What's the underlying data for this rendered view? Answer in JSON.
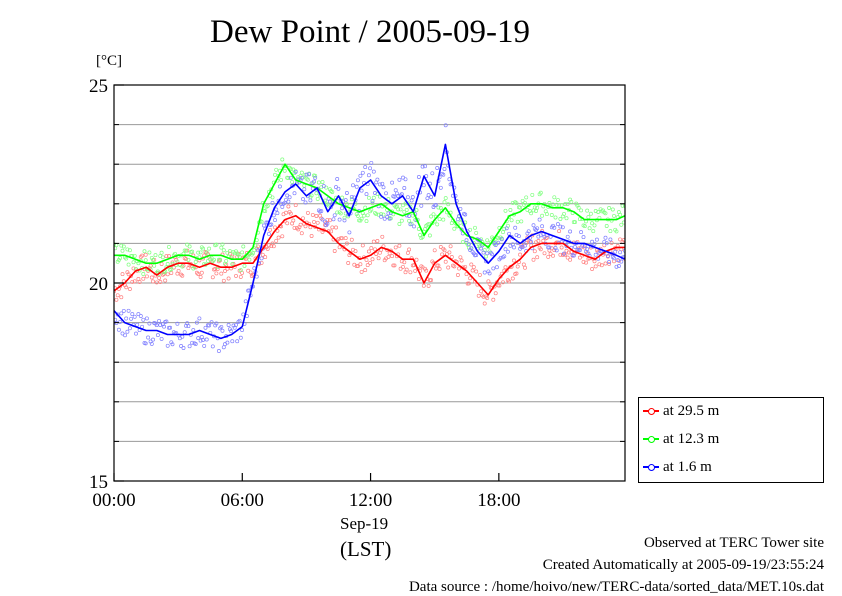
{
  "chart_data": {
    "type": "line",
    "title": "Dew Point / 2005-09-19",
    "ylabel": "[°C]",
    "xlabel": "Sep-19",
    "xlabel_sub": "(LST)",
    "x_unit": "hours",
    "xlim": [
      0,
      23.9
    ],
    "ylim": [
      15,
      25
    ],
    "yticks": [
      15,
      20,
      25
    ],
    "y_gridlines": [
      15,
      16,
      17,
      18,
      19,
      20,
      21,
      22,
      23,
      24,
      25
    ],
    "xticks": [
      {
        "value": 0,
        "label": "00:00"
      },
      {
        "value": 6,
        "label": "06:00"
      },
      {
        "value": 12,
        "label": "12:00"
      },
      {
        "value": 18,
        "label": "18:00"
      }
    ],
    "grid": true,
    "legend_position": "bottom-right-outside",
    "series": [
      {
        "name": "at 29.5 m",
        "color": "#ff0000",
        "x": [
          0,
          0.5,
          1,
          1.5,
          2,
          2.5,
          3,
          3.5,
          4,
          4.5,
          5,
          5.5,
          6,
          6.5,
          7,
          7.5,
          8,
          8.5,
          9,
          9.5,
          10,
          10.5,
          11,
          11.5,
          12,
          12.5,
          13,
          13.5,
          14,
          14.5,
          15,
          15.5,
          16,
          16.5,
          17,
          17.5,
          18,
          18.5,
          19,
          19.5,
          20,
          20.5,
          21,
          21.5,
          22,
          22.5,
          23,
          23.5,
          23.9
        ],
        "y": [
          19.8,
          20.0,
          20.3,
          20.4,
          20.2,
          20.4,
          20.5,
          20.5,
          20.4,
          20.5,
          20.4,
          20.4,
          20.5,
          20.5,
          20.9,
          21.3,
          21.6,
          21.7,
          21.5,
          21.4,
          21.3,
          21.0,
          20.8,
          20.6,
          20.7,
          20.9,
          20.8,
          20.6,
          20.6,
          20.0,
          20.5,
          20.7,
          20.5,
          20.3,
          20.0,
          19.7,
          20.1,
          20.4,
          20.6,
          20.9,
          21.0,
          21.0,
          21.0,
          20.8,
          20.7,
          20.6,
          20.8,
          20.9,
          20.9
        ]
      },
      {
        "name": "at 12.3 m",
        "color": "#00ff00",
        "x": [
          0,
          0.5,
          1,
          1.5,
          2,
          2.5,
          3,
          3.5,
          4,
          4.5,
          5,
          5.5,
          6,
          6.5,
          7,
          7.5,
          8,
          8.5,
          9,
          9.5,
          10,
          10.5,
          11,
          11.5,
          12,
          12.5,
          13,
          13.5,
          14,
          14.5,
          15,
          15.5,
          16,
          16.5,
          17,
          17.5,
          18,
          18.5,
          19,
          19.5,
          20,
          20.5,
          21,
          21.5,
          22,
          22.5,
          23,
          23.5,
          23.9
        ],
        "y": [
          20.7,
          20.7,
          20.6,
          20.5,
          20.5,
          20.6,
          20.7,
          20.7,
          20.6,
          20.7,
          20.7,
          20.6,
          20.6,
          20.9,
          22.0,
          22.5,
          23.0,
          22.6,
          22.5,
          22.4,
          22.2,
          22.0,
          21.9,
          21.8,
          21.9,
          22.0,
          21.8,
          21.7,
          21.8,
          21.2,
          21.6,
          21.9,
          21.5,
          21.2,
          21.1,
          20.9,
          21.3,
          21.7,
          21.8,
          22.0,
          22.0,
          21.9,
          21.9,
          21.8,
          21.6,
          21.6,
          21.6,
          21.6,
          21.7
        ]
      },
      {
        "name": "at 1.6 m",
        "color": "#0000ff",
        "x": [
          0,
          0.5,
          1,
          1.5,
          2,
          2.5,
          3,
          3.5,
          4,
          4.5,
          5,
          5.5,
          6,
          6.5,
          7,
          7.5,
          8,
          8.5,
          9,
          9.5,
          10,
          10.5,
          11,
          11.5,
          12,
          12.5,
          13,
          13.5,
          14,
          14.5,
          15,
          15.5,
          16,
          16.5,
          17,
          17.5,
          18,
          18.5,
          19,
          19.5,
          20,
          20.5,
          21,
          21.5,
          22,
          22.5,
          23,
          23.5,
          23.9
        ],
        "y": [
          19.3,
          19.0,
          18.9,
          18.8,
          18.8,
          18.7,
          18.7,
          18.7,
          18.8,
          18.7,
          18.6,
          18.7,
          18.9,
          20.0,
          21.2,
          21.9,
          22.3,
          22.5,
          22.2,
          22.4,
          21.8,
          22.2,
          21.7,
          22.4,
          22.6,
          22.2,
          22.0,
          22.2,
          21.8,
          22.7,
          22.2,
          23.5,
          22.0,
          21.3,
          20.8,
          20.5,
          20.8,
          21.2,
          21.0,
          21.2,
          21.3,
          21.2,
          21.1,
          21.0,
          21.0,
          20.9,
          20.8,
          20.7,
          20.6
        ]
      }
    ]
  },
  "footer": {
    "line1": "Observed at TERC Tower site",
    "line2": "Created Automatically at 2005-09-19/23:55:24",
    "line3": "Data source : /home/hoivo/new/TERC-data/sorted_data/MET.10s.dat"
  }
}
